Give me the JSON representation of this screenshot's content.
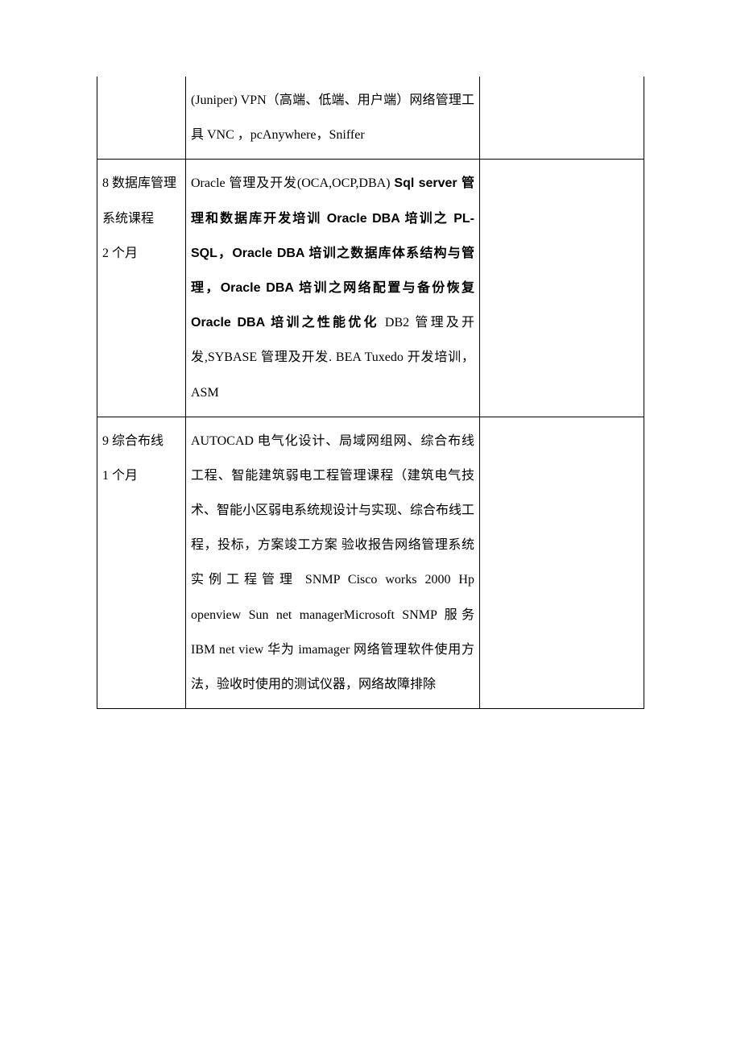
{
  "table": {
    "rows": [
      {
        "col1": "",
        "col2_parts": [
          {
            "text": "(Juniper) VPN（高端、低端、用户端）网络管理工具 VNC ，pcAnywhere，Sniffer",
            "bold": false
          }
        ],
        "col3": "",
        "no_top": true
      },
      {
        "col1": "8 数据库管理\n系统课程\n2 个月",
        "col2_parts": [
          {
            "text": "Oracle 管理及开发(OCA,OCP,DBA) ",
            "bold": false
          },
          {
            "text": "Sql server 管理和数据库开发培训 Oracle DBA 培训之 PL-SQL，Oracle DBA  培训之数据库体系结构与管理，Oracle DBA  培训之网络配置与备份恢复 Oracle DBA  培训之性能优化",
            "bold": true
          },
          {
            "text": " DB2 管理及开发,SYBASE 管理及开发. BEA Tuxedo 开发培训，ASM",
            "bold": false
          }
        ],
        "col3": "",
        "no_top": false
      },
      {
        "col1": "9 综合布线\n1 个月",
        "col2_parts": [
          {
            "text": "AUTOCAD 电气化设计、局域网组网、综合布线工程、智能建筑弱电工程管理课程（建筑电气技术、智能小区弱电系统规设计与实现、综合布线工程，投标，方案竣工方案 验收报告网络管理系统实例工程管理 SNMP Cisco works 2000 Hp openview   Sun net managerMicrosoft SNMP 服务  IBM net view  华为 imamager 网络管理软件使用方法，验收时使用的测试仪器，网络故障排除",
            "bold": false
          }
        ],
        "col3": "",
        "no_top": false
      }
    ]
  }
}
